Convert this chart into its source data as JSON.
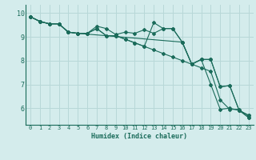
{
  "xlabel": "Humidex (Indice chaleur)",
  "xlim": [
    -0.5,
    23.5
  ],
  "ylim": [
    5.3,
    10.35
  ],
  "yticks": [
    6,
    7,
    8,
    9,
    10
  ],
  "xticks": [
    0,
    1,
    2,
    3,
    4,
    5,
    6,
    7,
    8,
    9,
    10,
    11,
    12,
    13,
    14,
    15,
    16,
    17,
    18,
    19,
    20,
    21,
    22,
    23
  ],
  "bg_color": "#d4ecec",
  "grid_color": "#b8d8d8",
  "line_color": "#1a6b5a",
  "lines": [
    {
      "x": [
        0,
        1,
        2,
        3,
        4,
        5,
        6,
        7,
        8,
        9,
        10,
        11,
        12,
        13,
        14,
        15,
        16,
        17,
        18,
        19,
        20,
        21,
        22,
        23
      ],
      "y": [
        9.85,
        9.65,
        9.55,
        9.55,
        9.2,
        9.15,
        9.15,
        9.45,
        9.35,
        9.1,
        9.2,
        9.15,
        9.3,
        9.15,
        9.35,
        9.35,
        8.78,
        7.85,
        8.05,
        8.05,
        6.9,
        6.95,
        5.9,
        5.7
      ]
    },
    {
      "x": [
        0,
        1,
        2,
        3,
        4,
        5,
        6,
        7,
        8,
        9,
        10,
        11,
        12,
        13,
        14,
        15,
        16,
        17,
        18,
        19,
        20,
        21,
        22,
        23
      ],
      "y": [
        9.85,
        9.65,
        9.55,
        9.55,
        9.2,
        9.15,
        9.15,
        9.35,
        9.05,
        9.05,
        8.9,
        8.75,
        8.6,
        8.45,
        8.3,
        8.15,
        8.0,
        7.85,
        7.7,
        7.55,
        6.35,
        5.95,
        5.95,
        5.6
      ]
    },
    {
      "x": [
        0,
        1,
        2,
        3,
        4,
        5,
        6,
        7,
        8,
        9,
        10,
        11,
        12,
        13,
        14,
        15,
        16,
        17,
        18,
        19,
        20,
        21,
        22,
        23
      ],
      "y": [
        9.85,
        9.65,
        9.55,
        9.55,
        9.2,
        9.15,
        9.15,
        9.35,
        9.05,
        9.05,
        8.9,
        8.75,
        8.6,
        9.6,
        9.35,
        9.35,
        8.78,
        7.85,
        8.05,
        7.0,
        5.95,
        6.0,
        5.9,
        5.6
      ]
    },
    {
      "x": [
        0,
        1,
        2,
        3,
        4,
        5,
        16,
        17,
        18,
        19,
        20,
        21,
        22,
        23
      ],
      "y": [
        9.85,
        9.65,
        9.55,
        9.55,
        9.2,
        9.15,
        8.78,
        7.85,
        8.05,
        8.05,
        6.9,
        6.95,
        5.9,
        5.7
      ]
    }
  ]
}
